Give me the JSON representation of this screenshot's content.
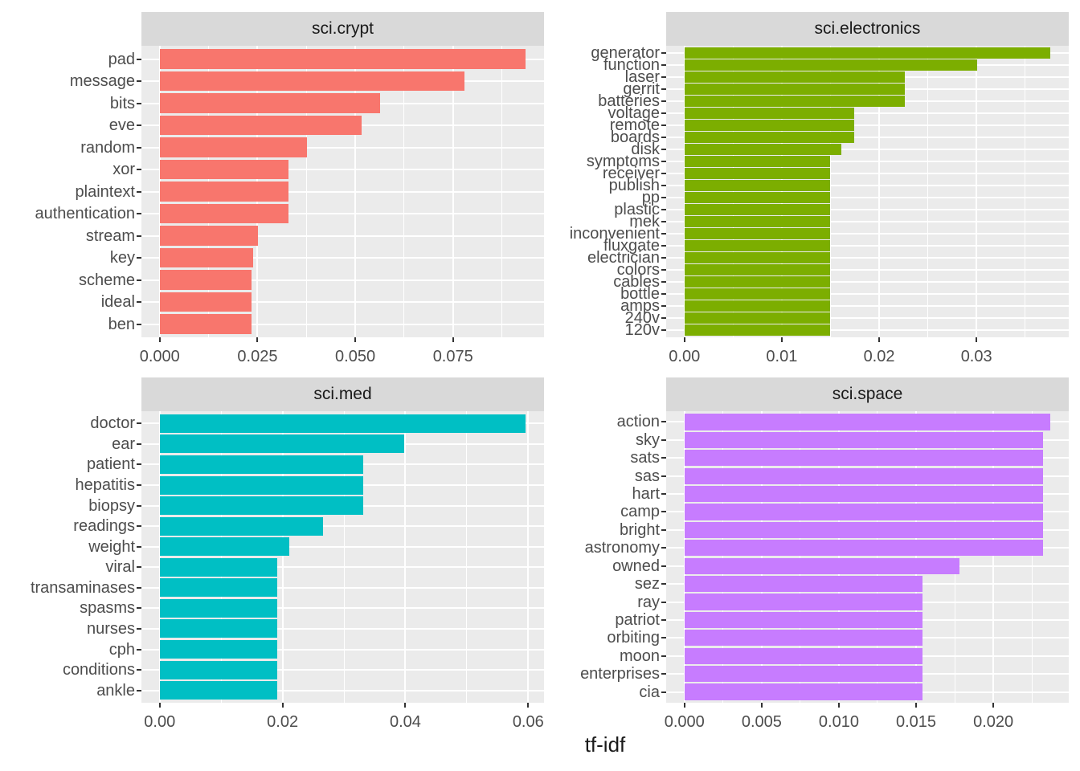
{
  "figure": {
    "x_axis_title": "tf-idf"
  },
  "colors": {
    "plot_background": "#FFFFFF",
    "panel_background": "#EBEBEB",
    "strip_background": "#D9D9D9",
    "gridline": "#FFFFFF",
    "axis_text": "#4D4D4D",
    "strip_text": "#1A1A1A",
    "axis_title_text": "#1A1A1A",
    "tick_mark": "#333333",
    "crypt_bar": "#F8766D",
    "electronics_bar": "#7CAE00",
    "med_bar": "#00BFC4",
    "space_bar": "#C77CFF"
  },
  "chart_data": [
    {
      "type": "bar",
      "orientation": "horizontal",
      "facet": "sci.crypt",
      "color": "#F8766D",
      "xlabel": "tf-idf",
      "categories": [
        "pad",
        "message",
        "bits",
        "eve",
        "random",
        "xor",
        "plaintext",
        "authentication",
        "stream",
        "key",
        "scheme",
        "ideal",
        "ben"
      ],
      "values": [
        0.0936,
        0.0779,
        0.0563,
        0.0517,
        0.0376,
        0.033,
        0.033,
        0.033,
        0.0251,
        0.0239,
        0.0234,
        0.0234,
        0.0234
      ],
      "xlim": [
        -0.0047,
        0.0983
      ],
      "x_ticks": {
        "values": [
          0,
          0.025,
          0.05,
          0.075
        ],
        "labels": [
          "0.000",
          "0.025",
          "0.050",
          "0.075"
        ],
        "minor_step": 0.0125
      }
    },
    {
      "type": "bar",
      "orientation": "horizontal",
      "facet": "sci.electronics",
      "color": "#7CAE00",
      "xlabel": "tf-idf",
      "categories": [
        "generator",
        "function",
        "laser",
        "gerrit",
        "batteries",
        "voltage",
        "remote",
        "boards",
        "disk",
        "symptoms",
        "receiver",
        "publish",
        "pp",
        "plastic",
        "mek",
        "inconvenient",
        "fluxgate",
        "electrician",
        "colors",
        "cables",
        "bottle",
        "amps",
        "240v",
        "120v"
      ],
      "values": [
        0.0376,
        0.0301,
        0.0226,
        0.0226,
        0.0226,
        0.0174,
        0.0174,
        0.0174,
        0.0161,
        0.015,
        0.015,
        0.015,
        0.015,
        0.015,
        0.015,
        0.015,
        0.015,
        0.015,
        0.015,
        0.015,
        0.015,
        0.015,
        0.015,
        0.015
      ],
      "xlim": [
        -0.0019,
        0.0395
      ],
      "x_ticks": {
        "values": [
          0,
          0.01,
          0.02,
          0.03
        ],
        "labels": [
          "0.00",
          "0.01",
          "0.02",
          "0.03"
        ],
        "minor_step": 0.005
      }
    },
    {
      "type": "bar",
      "orientation": "horizontal",
      "facet": "sci.med",
      "color": "#00BFC4",
      "xlabel": "tf-idf",
      "categories": [
        "doctor",
        "ear",
        "patient",
        "hepatitis",
        "biopsy",
        "readings",
        "weight",
        "viral",
        "transaminases",
        "spasms",
        "nurses",
        "cph",
        "conditions",
        "ankle"
      ],
      "values": [
        0.0596,
        0.0398,
        0.0331,
        0.0331,
        0.0331,
        0.0266,
        0.0211,
        0.0191,
        0.0191,
        0.0191,
        0.0191,
        0.0191,
        0.0191,
        0.0191
      ],
      "xlim": [
        -0.003,
        0.0626
      ],
      "x_ticks": {
        "values": [
          0,
          0.02,
          0.04,
          0.06
        ],
        "labels": [
          "0.00",
          "0.02",
          "0.04",
          "0.06"
        ],
        "minor_step": 0.01
      }
    },
    {
      "type": "bar",
      "orientation": "horizontal",
      "facet": "sci.space",
      "color": "#C77CFF",
      "xlabel": "tf-idf",
      "categories": [
        "action",
        "sky",
        "sats",
        "sas",
        "hart",
        "camp",
        "bright",
        "astronomy",
        "owned",
        "sez",
        "ray",
        "patriot",
        "orbiting",
        "moon",
        "enterprises",
        "cia"
      ],
      "values": [
        0.0237,
        0.0232,
        0.0232,
        0.0232,
        0.0232,
        0.0232,
        0.0232,
        0.0232,
        0.0178,
        0.0154,
        0.0154,
        0.0154,
        0.0154,
        0.0154,
        0.0154,
        0.0154
      ],
      "xlim": [
        -0.0012,
        0.0249
      ],
      "x_ticks": {
        "values": [
          0,
          0.005,
          0.01,
          0.015,
          0.02
        ],
        "labels": [
          "0.000",
          "0.005",
          "0.010",
          "0.015",
          "0.020"
        ],
        "minor_step": 0.0025
      }
    }
  ]
}
